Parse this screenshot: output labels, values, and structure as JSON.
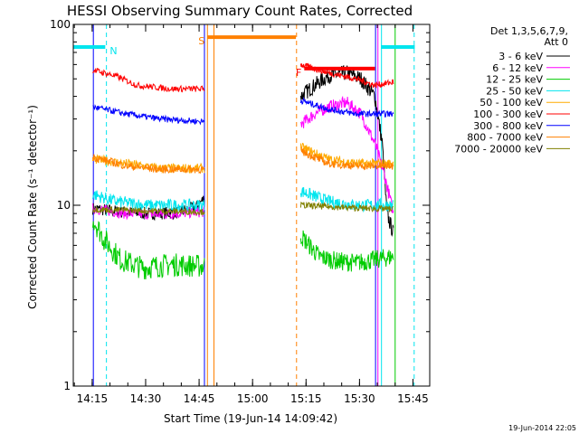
{
  "chart_data": {
    "type": "line",
    "title": "HESSI Observing Summary Count Rates, Corrected",
    "xlabel": "Start Time (19-Jun-14 14:09:42)",
    "ylabel": "Corrected Count Rate (s⁻¹ detector⁻¹)",
    "yscale": "log",
    "ylim": [
      1,
      100
    ],
    "y_tick_labels": [
      "1",
      "10",
      "100"
    ],
    "xlim": [
      "14:09:42",
      "15:49:42"
    ],
    "x_tick_labels": [
      "14:15",
      "14:30",
      "14:45",
      "15:00",
      "15:15",
      "15:30",
      "15:45"
    ],
    "legend": {
      "position": "top-right",
      "header": [
        "Det 1,3,5,6,7,9,",
        "Att 0"
      ]
    },
    "timestamp": "19-Jun-2014 22:05",
    "flags": [
      {
        "label": "N",
        "color": "#00e5ee",
        "segments": [
          [
            "14:09:42",
            "14:18:40"
          ],
          [
            "15:36:00",
            "15:45:30"
          ]
        ],
        "level": 75
      },
      {
        "label": "S",
        "color": "#ff8000",
        "segments": [
          [
            "14:47:20",
            "15:12:10"
          ]
        ],
        "level": 85
      },
      {
        "label": "F",
        "color": "#ff0000",
        "segments": [
          [
            "15:14:30",
            "15:34:20"
          ]
        ],
        "level": 57
      }
    ],
    "vlines": [
      {
        "time": "14:09:42",
        "color": "#00e5ee",
        "style": "solid"
      },
      {
        "time": "14:15:20",
        "color": "#0000ff",
        "style": "solid"
      },
      {
        "time": "14:19:00",
        "color": "#00e5ee",
        "style": "dashed"
      },
      {
        "time": "14:46:30",
        "color": "#0000ff",
        "style": "solid"
      },
      {
        "time": "14:47:20",
        "color": "#ff8000",
        "style": "solid"
      },
      {
        "time": "14:49:10",
        "color": "#ff8000",
        "style": "solid"
      },
      {
        "time": "15:12:20",
        "color": "#ff8000",
        "style": "dashed"
      },
      {
        "time": "15:34:30",
        "color": "#0000ff",
        "style": "solid"
      },
      {
        "time": "15:35:10",
        "color": "#ff00ff",
        "style": "solid"
      },
      {
        "time": "15:36:10",
        "color": "#00e5ee",
        "style": "solid"
      },
      {
        "time": "15:40:00",
        "color": "#00cc00",
        "style": "solid"
      },
      {
        "time": "15:45:20",
        "color": "#00e5ee",
        "style": "dashed"
      }
    ],
    "series": [
      {
        "name": "3 - 6 keV",
        "color": "#000000",
        "segments": [
          {
            "t0": "14:15:10",
            "t1": "14:46:30",
            "x": [
              0,
              0.25,
              0.5,
              0.75,
              0.93,
              1
            ],
            "y": [
              9.6,
              9.2,
              9.0,
              9.1,
              9.8,
              11
            ],
            "noise": 0.08
          },
          {
            "t0": "15:13:30",
            "t1": "15:39:30",
            "x": [
              0,
              0.15,
              0.3,
              0.5,
              0.65,
              0.8,
              0.88,
              0.93,
              1
            ],
            "y": [
              40,
              46,
              52,
              54,
              50,
              40,
              22,
              9,
              7
            ],
            "noise": 0.1
          }
        ]
      },
      {
        "name": "6 - 12 keV",
        "color": "#ff00ff",
        "segments": [
          {
            "t0": "14:15:10",
            "t1": "14:46:30",
            "x": [
              0,
              0.3,
              0.6,
              1
            ],
            "y": [
              9.6,
              9.0,
              8.9,
              9.2
            ],
            "noise": 0.07
          },
          {
            "t0": "15:13:30",
            "t1": "15:39:30",
            "x": [
              0,
              0.15,
              0.3,
              0.5,
              0.65,
              0.8,
              0.9,
              1
            ],
            "y": [
              28,
              32,
              35,
              37,
              32,
              22,
              15,
              9
            ],
            "noise": 0.08
          }
        ]
      },
      {
        "name": "12 - 25 keV",
        "color": "#00cc00",
        "segments": [
          {
            "t0": "14:15:10",
            "t1": "14:46:30",
            "x": [
              0,
              0.1,
              0.25,
              0.45,
              0.7,
              1
            ],
            "y": [
              8.5,
              6.5,
              5.0,
              4.5,
              4.7,
              4.6
            ],
            "noise": 0.15
          },
          {
            "t0": "15:13:30",
            "t1": "15:39:30",
            "x": [
              0,
              0.2,
              0.4,
              0.6,
              0.8,
              1
            ],
            "y": [
              6.8,
              5.2,
              4.9,
              4.8,
              5.0,
              5.2
            ],
            "noise": 0.12
          }
        ]
      },
      {
        "name": "25 - 50 keV",
        "color": "#00e5ee",
        "segments": [
          {
            "t0": "14:15:10",
            "t1": "14:46:30",
            "x": [
              0,
              0.2,
              0.5,
              0.8,
              1
            ],
            "y": [
              11.5,
              10.5,
              10.0,
              10.0,
              10.0
            ],
            "noise": 0.08
          },
          {
            "t0": "15:13:30",
            "t1": "15:39:30",
            "x": [
              0,
              0.3,
              0.6,
              1
            ],
            "y": [
              12,
              10.5,
              10,
              10
            ],
            "noise": 0.08
          }
        ]
      },
      {
        "name": "50 - 100 keV",
        "color": "#ffaa00",
        "segments": [
          {
            "t0": "14:15:10",
            "t1": "14:46:30",
            "x": [
              0,
              0.3,
              0.6,
              1
            ],
            "y": [
              18,
              17,
              16,
              16
            ],
            "noise": 0.06
          },
          {
            "t0": "15:13:30",
            "t1": "15:39:30",
            "x": [
              0,
              0.3,
              0.6,
              1
            ],
            "y": [
              21,
              18,
              17,
              17
            ],
            "noise": 0.06
          }
        ]
      },
      {
        "name": "100 - 300 keV",
        "color": "#ff0000",
        "segments": [
          {
            "t0": "14:15:10",
            "t1": "14:46:30",
            "x": [
              0,
              0.2,
              0.4,
              0.7,
              1
            ],
            "y": [
              56,
              52,
              46,
              44,
              44
            ],
            "noise": 0.04
          },
          {
            "t0": "15:13:30",
            "t1": "15:39:30",
            "x": [
              0,
              0.3,
              0.6,
              0.8,
              1
            ],
            "y": [
              60,
              54,
              50,
              46,
              48
            ],
            "noise": 0.04
          }
        ]
      },
      {
        "name": "300 - 800 keV",
        "color": "#0000ff",
        "segments": [
          {
            "t0": "14:15:10",
            "t1": "14:46:30",
            "x": [
              0,
              0.3,
              0.6,
              1
            ],
            "y": [
              35,
              32,
              30,
              29
            ],
            "noise": 0.04
          },
          {
            "t0": "15:13:30",
            "t1": "15:39:30",
            "x": [
              0,
              0.3,
              0.6,
              1
            ],
            "y": [
              38,
              34,
              32,
              32
            ],
            "noise": 0.04
          }
        ]
      },
      {
        "name": "800 - 7000 keV",
        "color": "#ff8000",
        "segments": [
          {
            "t0": "14:15:10",
            "t1": "14:46:30",
            "x": [
              0,
              0.3,
              0.6,
              1
            ],
            "y": [
              18.5,
              16.5,
              15.8,
              15.8
            ],
            "noise": 0.05
          },
          {
            "t0": "15:13:30",
            "t1": "15:39:30",
            "x": [
              0,
              0.3,
              0.6,
              1
            ],
            "y": [
              20,
              17,
              16.5,
              16.5
            ],
            "noise": 0.05
          }
        ]
      },
      {
        "name": "7000 - 20000 keV",
        "color": "#808000",
        "segments": [
          {
            "t0": "14:15:10",
            "t1": "14:46:30",
            "x": [
              0,
              0.5,
              1
            ],
            "y": [
              9.5,
              9.3,
              9.2
            ],
            "noise": 0.04
          },
          {
            "t0": "15:13:30",
            "t1": "15:39:30",
            "x": [
              0,
              0.5,
              1
            ],
            "y": [
              10,
              9.7,
              9.5
            ],
            "noise": 0.04
          }
        ]
      }
    ]
  }
}
